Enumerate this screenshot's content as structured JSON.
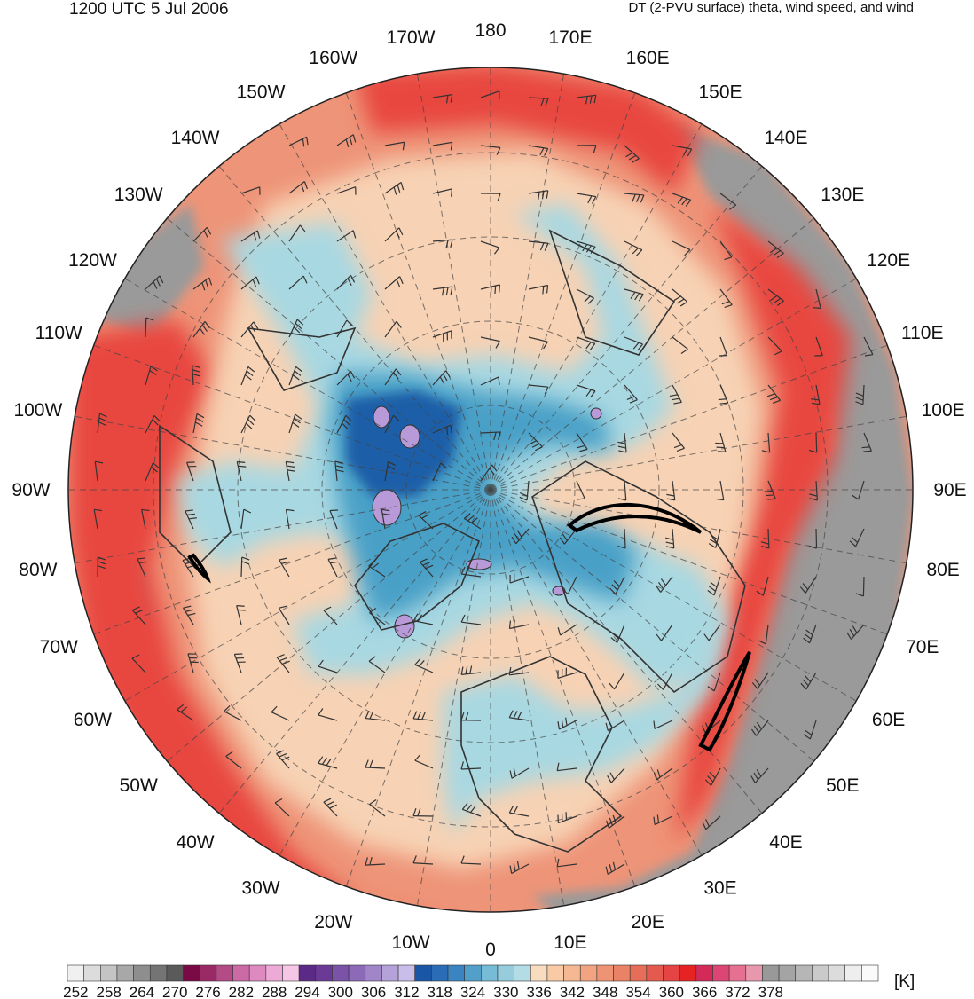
{
  "header": {
    "title_left": "1200 UTC 5 Jul 2006",
    "title_right": "DT (2-PVU surface) theta, wind speed, and wind"
  },
  "map": {
    "projection": "north-polar-stereographic",
    "longitude_labels": [
      "180",
      "170E",
      "160E",
      "150E",
      "140E",
      "130E",
      "120E",
      "110E",
      "100E",
      "90E",
      "80E",
      "70E",
      "60E",
      "50E",
      "40E",
      "30E",
      "20E",
      "10E",
      "0",
      "10W",
      "20W",
      "30W",
      "40W",
      "50W",
      "60W",
      "70W",
      "80W",
      "90W",
      "100W",
      "110W",
      "120W",
      "130W",
      "140W",
      "150W",
      "160W",
      "170W"
    ],
    "colors": {
      "warm_red": "#e8473f",
      "salmon": "#ee9478",
      "peach": "#f7d2b4",
      "light_blue": "#a8d8e2",
      "mid_blue": "#4aa0c7",
      "deep_blue": "#1f5fa8",
      "lavender": "#b89ad8",
      "magenta": "#d0406e",
      "grey": "#9a9a9a",
      "coast": "#333333"
    }
  },
  "colorbar": {
    "unit": "[K]",
    "tick_labels": [
      "252",
      "258",
      "264",
      "270",
      "276",
      "282",
      "288",
      "294",
      "300",
      "306",
      "312",
      "318",
      "324",
      "330",
      "336",
      "342",
      "348",
      "354",
      "360",
      "366",
      "372",
      "378"
    ],
    "colors": [
      "#f0f0f0",
      "#dcdcdc",
      "#c4c4c4",
      "#a8a8a8",
      "#8e8e8e",
      "#747474",
      "#5a5a5a",
      "#7a0a46",
      "#9a2a66",
      "#b44a86",
      "#cc6aa6",
      "#de8ac0",
      "#eeaad6",
      "#f6c6e6",
      "#5a2a86",
      "#6a3a96",
      "#7a52a8",
      "#8c6ab8",
      "#a086c8",
      "#b4a2d8",
      "#c8bee8",
      "#1a56a6",
      "#2a6cb6",
      "#3a84c2",
      "#52a0ca",
      "#76bcd6",
      "#96ccdc",
      "#b4dce6",
      "#f8dcc0",
      "#f8caa6",
      "#f4b892",
      "#f2a482",
      "#ee9474",
      "#ea8266",
      "#e66e58",
      "#e45a4e",
      "#e44444",
      "#e62222",
      "#d42a5a",
      "#dc4674",
      "#e67090",
      "#e898ac",
      "#999999",
      "#a4a4a4",
      "#b6b6b6",
      "#cacaca",
      "#dcdcdc",
      "#eeeeee",
      "#fafafa"
    ],
    "range": [
      252,
      378
    ],
    "step": 3
  }
}
